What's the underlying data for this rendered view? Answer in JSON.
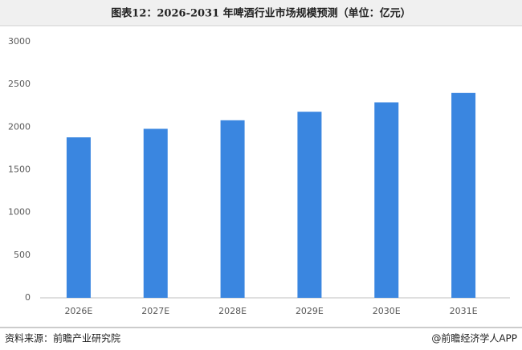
{
  "chart_data": {
    "type": "bar",
    "title": "图表12：2026-2031 年啤酒行业市场规模预测（单位：亿元）",
    "categories": [
      "2026E",
      "2027E",
      "2028E",
      "2029E",
      "2030E",
      "2031E"
    ],
    "values": [
      1880,
      1980,
      2080,
      2180,
      2290,
      2400
    ],
    "color": "#3a86e0",
    "ylim": [
      0,
      3000
    ],
    "yticks": [
      0,
      500,
      1000,
      1500,
      2000,
      2500,
      3000
    ],
    "grid": false,
    "source": "资料来源：前瞻产业研究院",
    "credit": "@前瞻经济学人APP"
  }
}
